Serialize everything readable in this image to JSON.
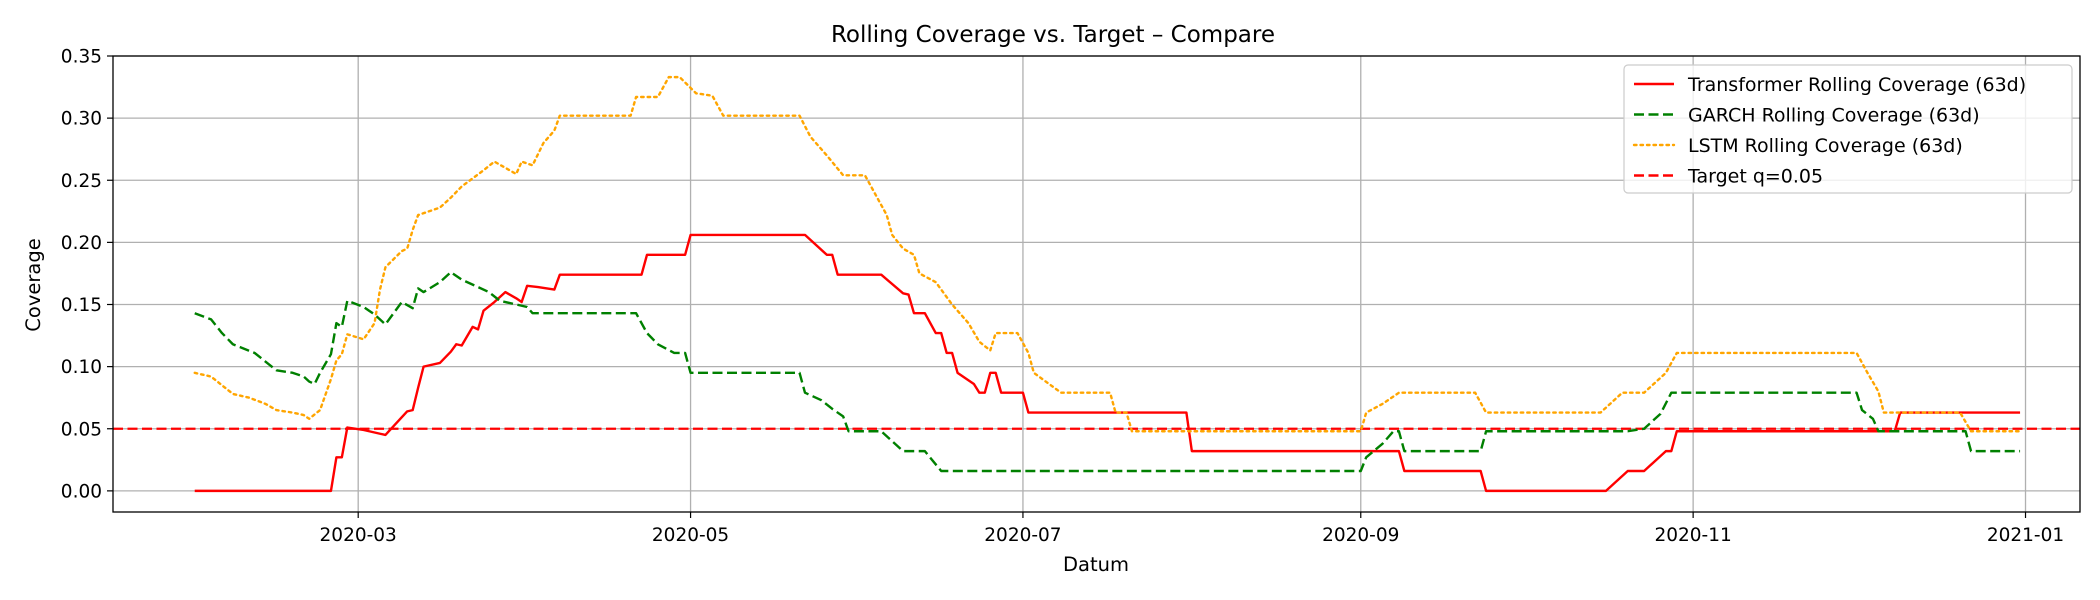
{
  "chart_data": {
    "type": "line",
    "title": "Rolling Coverage vs. Target – Compare",
    "xlabel": "Datum",
    "ylabel": "Coverage",
    "ylim": [
      -0.017,
      0.35
    ],
    "xlim": [
      "2020-01-16",
      "2021-01-11"
    ],
    "grid": true,
    "legend_position": "top-right",
    "x_ticks": [
      {
        "date": "2020-03-01",
        "label": "2020-03"
      },
      {
        "date": "2020-05-01",
        "label": "2020-05"
      },
      {
        "date": "2020-07-01",
        "label": "2020-07"
      },
      {
        "date": "2020-09-01",
        "label": "2020-09"
      },
      {
        "date": "2020-11-01",
        "label": "2020-11"
      },
      {
        "date": "2021-01-01",
        "label": "2021-01"
      }
    ],
    "y_ticks": [
      {
        "value": 0.0,
        "label": "0.00"
      },
      {
        "value": 0.05,
        "label": "0.05"
      },
      {
        "value": 0.1,
        "label": "0.10"
      },
      {
        "value": 0.15,
        "label": "0.15"
      },
      {
        "value": 0.2,
        "label": "0.20"
      },
      {
        "value": 0.25,
        "label": "0.25"
      },
      {
        "value": 0.3,
        "label": "0.30"
      },
      {
        "value": 0.35,
        "label": "0.35"
      }
    ],
    "series": [
      {
        "name": "Transformer Rolling Coverage (63d)",
        "color": "#ff0000",
        "style": "solid",
        "points": [
          [
            "2020-01-31",
            0.0
          ],
          [
            "2020-02-25",
            0.0
          ],
          [
            "2020-02-26",
            0.027
          ],
          [
            "2020-02-27",
            0.027
          ],
          [
            "2020-02-28",
            0.051
          ],
          [
            "2020-03-02",
            0.049
          ],
          [
            "2020-03-06",
            0.045
          ],
          [
            "2020-03-10",
            0.064
          ],
          [
            "2020-03-11",
            0.065
          ],
          [
            "2020-03-12",
            0.083
          ],
          [
            "2020-03-13",
            0.1
          ],
          [
            "2020-03-16",
            0.103
          ],
          [
            "2020-03-18",
            0.112
          ],
          [
            "2020-03-19",
            0.118
          ],
          [
            "2020-03-20",
            0.117
          ],
          [
            "2020-03-22",
            0.132
          ],
          [
            "2020-03-23",
            0.13
          ],
          [
            "2020-03-24",
            0.145
          ],
          [
            "2020-03-26",
            0.152
          ],
          [
            "2020-03-28",
            0.16
          ],
          [
            "2020-03-30",
            0.155
          ],
          [
            "2020-03-31",
            0.152
          ],
          [
            "2020-04-01",
            0.165
          ],
          [
            "2020-04-03",
            0.164
          ],
          [
            "2020-04-06",
            0.162
          ],
          [
            "2020-04-07",
            0.174
          ],
          [
            "2020-04-22",
            0.174
          ],
          [
            "2020-04-23",
            0.19
          ],
          [
            "2020-04-30",
            0.19
          ],
          [
            "2020-05-01",
            0.206
          ],
          [
            "2020-05-22",
            0.206
          ],
          [
            "2020-05-26",
            0.19
          ],
          [
            "2020-05-27",
            0.19
          ],
          [
            "2020-05-28",
            0.174
          ],
          [
            "2020-06-05",
            0.174
          ],
          [
            "2020-06-09",
            0.159
          ],
          [
            "2020-06-10",
            0.158
          ],
          [
            "2020-06-11",
            0.143
          ],
          [
            "2020-06-13",
            0.143
          ],
          [
            "2020-06-15",
            0.127
          ],
          [
            "2020-06-16",
            0.127
          ],
          [
            "2020-06-17",
            0.111
          ],
          [
            "2020-06-18",
            0.111
          ],
          [
            "2020-06-19",
            0.095
          ],
          [
            "2020-06-22",
            0.086
          ],
          [
            "2020-06-23",
            0.079
          ],
          [
            "2020-06-24",
            0.079
          ],
          [
            "2020-06-25",
            0.095
          ],
          [
            "2020-06-26",
            0.095
          ],
          [
            "2020-06-27",
            0.079
          ],
          [
            "2020-07-01",
            0.079
          ],
          [
            "2020-07-02",
            0.063
          ],
          [
            "2020-07-31",
            0.063
          ],
          [
            "2020-08-01",
            0.032
          ],
          [
            "2020-09-08",
            0.032
          ],
          [
            "2020-09-09",
            0.016
          ],
          [
            "2020-09-23",
            0.016
          ],
          [
            "2020-09-24",
            0.0
          ],
          [
            "2020-10-16",
            0.0
          ],
          [
            "2020-10-20",
            0.016
          ],
          [
            "2020-10-23",
            0.016
          ],
          [
            "2020-10-27",
            0.032
          ],
          [
            "2020-10-28",
            0.032
          ],
          [
            "2020-10-29",
            0.048
          ],
          [
            "2020-12-08",
            0.048
          ],
          [
            "2020-12-09",
            0.063
          ],
          [
            "2020-12-31",
            0.063
          ]
        ]
      },
      {
        "name": "GARCH Rolling Coverage (63d)",
        "color": "#008000",
        "style": "dashed",
        "points": [
          [
            "2020-01-31",
            0.143
          ],
          [
            "2020-02-03",
            0.138
          ],
          [
            "2020-02-05",
            0.127
          ],
          [
            "2020-02-07",
            0.118
          ],
          [
            "2020-02-11",
            0.111
          ],
          [
            "2020-02-13",
            0.104
          ],
          [
            "2020-02-15",
            0.097
          ],
          [
            "2020-02-18",
            0.095
          ],
          [
            "2020-02-20",
            0.092
          ],
          [
            "2020-02-21",
            0.088
          ],
          [
            "2020-02-22",
            0.086
          ],
          [
            "2020-02-23",
            0.095
          ],
          [
            "2020-02-25",
            0.11
          ],
          [
            "2020-02-26",
            0.135
          ],
          [
            "2020-02-27",
            0.132
          ],
          [
            "2020-02-28",
            0.153
          ],
          [
            "2020-03-02",
            0.148
          ],
          [
            "2020-03-03",
            0.145
          ],
          [
            "2020-03-04",
            0.142
          ],
          [
            "2020-03-06",
            0.134
          ],
          [
            "2020-03-09",
            0.152
          ],
          [
            "2020-03-11",
            0.147
          ],
          [
            "2020-03-12",
            0.163
          ],
          [
            "2020-03-13",
            0.16
          ],
          [
            "2020-03-16",
            0.168
          ],
          [
            "2020-03-18",
            0.176
          ],
          [
            "2020-03-20",
            0.17
          ],
          [
            "2020-03-23",
            0.164
          ],
          [
            "2020-03-25",
            0.16
          ],
          [
            "2020-03-27",
            0.153
          ],
          [
            "2020-03-30",
            0.15
          ],
          [
            "2020-04-01",
            0.148
          ],
          [
            "2020-04-02",
            0.143
          ],
          [
            "2020-04-21",
            0.143
          ],
          [
            "2020-04-23",
            0.127
          ],
          [
            "2020-04-25",
            0.118
          ],
          [
            "2020-04-28",
            0.111
          ],
          [
            "2020-04-30",
            0.111
          ],
          [
            "2020-05-01",
            0.095
          ],
          [
            "2020-05-21",
            0.095
          ],
          [
            "2020-05-22",
            0.079
          ],
          [
            "2020-05-25",
            0.073
          ],
          [
            "2020-05-27",
            0.066
          ],
          [
            "2020-05-29",
            0.06
          ],
          [
            "2020-05-30",
            0.048
          ],
          [
            "2020-06-05",
            0.048
          ],
          [
            "2020-06-09",
            0.032
          ],
          [
            "2020-06-13",
            0.032
          ],
          [
            "2020-06-16",
            0.016
          ],
          [
            "2020-09-01",
            0.016
          ],
          [
            "2020-09-02",
            0.027
          ],
          [
            "2020-09-05",
            0.038
          ],
          [
            "2020-09-07",
            0.048
          ],
          [
            "2020-09-08",
            0.048
          ],
          [
            "2020-09-09",
            0.032
          ],
          [
            "2020-09-23",
            0.032
          ],
          [
            "2020-09-24",
            0.048
          ],
          [
            "2020-10-20",
            0.048
          ],
          [
            "2020-10-23",
            0.05
          ],
          [
            "2020-10-26",
            0.062
          ],
          [
            "2020-10-28",
            0.079
          ],
          [
            "2020-12-01",
            0.079
          ],
          [
            "2020-12-02",
            0.065
          ],
          [
            "2020-12-04",
            0.058
          ],
          [
            "2020-12-05",
            0.048
          ],
          [
            "2020-12-21",
            0.048
          ],
          [
            "2020-12-22",
            0.032
          ],
          [
            "2020-12-31",
            0.032
          ]
        ]
      },
      {
        "name": "LSTM Rolling Coverage (63d)",
        "color": "#ffa500",
        "style": "dotted",
        "points": [
          [
            "2020-01-31",
            0.095
          ],
          [
            "2020-02-03",
            0.092
          ],
          [
            "2020-02-05",
            0.085
          ],
          [
            "2020-02-07",
            0.078
          ],
          [
            "2020-02-10",
            0.075
          ],
          [
            "2020-02-13",
            0.07
          ],
          [
            "2020-02-15",
            0.065
          ],
          [
            "2020-02-18",
            0.063
          ],
          [
            "2020-02-20",
            0.061
          ],
          [
            "2020-02-21",
            0.058
          ],
          [
            "2020-02-23",
            0.065
          ],
          [
            "2020-02-25",
            0.09
          ],
          [
            "2020-02-26",
            0.105
          ],
          [
            "2020-02-27",
            0.11
          ],
          [
            "2020-02-28",
            0.126
          ],
          [
            "2020-03-02",
            0.122
          ],
          [
            "2020-03-04",
            0.135
          ],
          [
            "2020-03-05",
            0.162
          ],
          [
            "2020-03-06",
            0.18
          ],
          [
            "2020-03-09",
            0.193
          ],
          [
            "2020-03-10",
            0.195
          ],
          [
            "2020-03-11",
            0.21
          ],
          [
            "2020-03-12",
            0.222
          ],
          [
            "2020-03-16",
            0.228
          ],
          [
            "2020-03-18",
            0.236
          ],
          [
            "2020-03-20",
            0.245
          ],
          [
            "2020-03-24",
            0.258
          ],
          [
            "2020-03-26",
            0.265
          ],
          [
            "2020-03-28",
            0.26
          ],
          [
            "2020-03-30",
            0.255
          ],
          [
            "2020-03-31",
            0.265
          ],
          [
            "2020-04-02",
            0.262
          ],
          [
            "2020-04-04",
            0.28
          ],
          [
            "2020-04-06",
            0.29
          ],
          [
            "2020-04-07",
            0.302
          ],
          [
            "2020-04-20",
            0.302
          ],
          [
            "2020-04-21",
            0.317
          ],
          [
            "2020-04-25",
            0.317
          ],
          [
            "2020-04-27",
            0.333
          ],
          [
            "2020-04-29",
            0.333
          ],
          [
            "2020-05-02",
            0.32
          ],
          [
            "2020-05-05",
            0.318
          ],
          [
            "2020-05-07",
            0.302
          ],
          [
            "2020-05-21",
            0.302
          ],
          [
            "2020-05-23",
            0.285
          ],
          [
            "2020-05-26",
            0.27
          ],
          [
            "2020-05-29",
            0.254
          ],
          [
            "2020-06-02",
            0.254
          ],
          [
            "2020-06-04",
            0.238
          ],
          [
            "2020-06-06",
            0.222
          ],
          [
            "2020-06-07",
            0.206
          ],
          [
            "2020-06-09",
            0.195
          ],
          [
            "2020-06-11",
            0.19
          ],
          [
            "2020-06-12",
            0.175
          ],
          [
            "2020-06-15",
            0.168
          ],
          [
            "2020-06-18",
            0.15
          ],
          [
            "2020-06-21",
            0.135
          ],
          [
            "2020-06-23",
            0.12
          ],
          [
            "2020-06-25",
            0.113
          ],
          [
            "2020-06-26",
            0.127
          ],
          [
            "2020-06-30",
            0.127
          ],
          [
            "2020-07-02",
            0.111
          ],
          [
            "2020-07-03",
            0.095
          ],
          [
            "2020-07-08",
            0.079
          ],
          [
            "2020-07-17",
            0.079
          ],
          [
            "2020-07-18",
            0.063
          ],
          [
            "2020-07-20",
            0.063
          ],
          [
            "2020-07-21",
            0.048
          ],
          [
            "2020-09-01",
            0.048
          ],
          [
            "2020-09-02",
            0.063
          ],
          [
            "2020-09-05",
            0.07
          ],
          [
            "2020-09-08",
            0.079
          ],
          [
            "2020-09-22",
            0.079
          ],
          [
            "2020-09-24",
            0.063
          ],
          [
            "2020-10-15",
            0.063
          ],
          [
            "2020-10-19",
            0.079
          ],
          [
            "2020-10-23",
            0.079
          ],
          [
            "2020-10-27",
            0.095
          ],
          [
            "2020-10-29",
            0.111
          ],
          [
            "2020-12-01",
            0.111
          ],
          [
            "2020-12-03",
            0.095
          ],
          [
            "2020-12-05",
            0.08
          ],
          [
            "2020-12-06",
            0.063
          ],
          [
            "2020-12-20",
            0.063
          ],
          [
            "2020-12-22",
            0.048
          ],
          [
            "2020-12-31",
            0.048
          ]
        ]
      }
    ],
    "reference_lines": [
      {
        "name": "Target q=0.05",
        "value": 0.05,
        "color": "#ff0000",
        "style": "dashed"
      }
    ],
    "legend": [
      {
        "label": "Transformer Rolling Coverage (63d)",
        "color": "#ff0000",
        "style": "solid"
      },
      {
        "label": "GARCH Rolling Coverage (63d)",
        "color": "#008000",
        "style": "dashed"
      },
      {
        "label": "LSTM Rolling Coverage (63d)",
        "color": "#ffa500",
        "style": "dotted"
      },
      {
        "label": "Target q=0.05",
        "color": "#ff0000",
        "style": "dashed"
      }
    ]
  }
}
